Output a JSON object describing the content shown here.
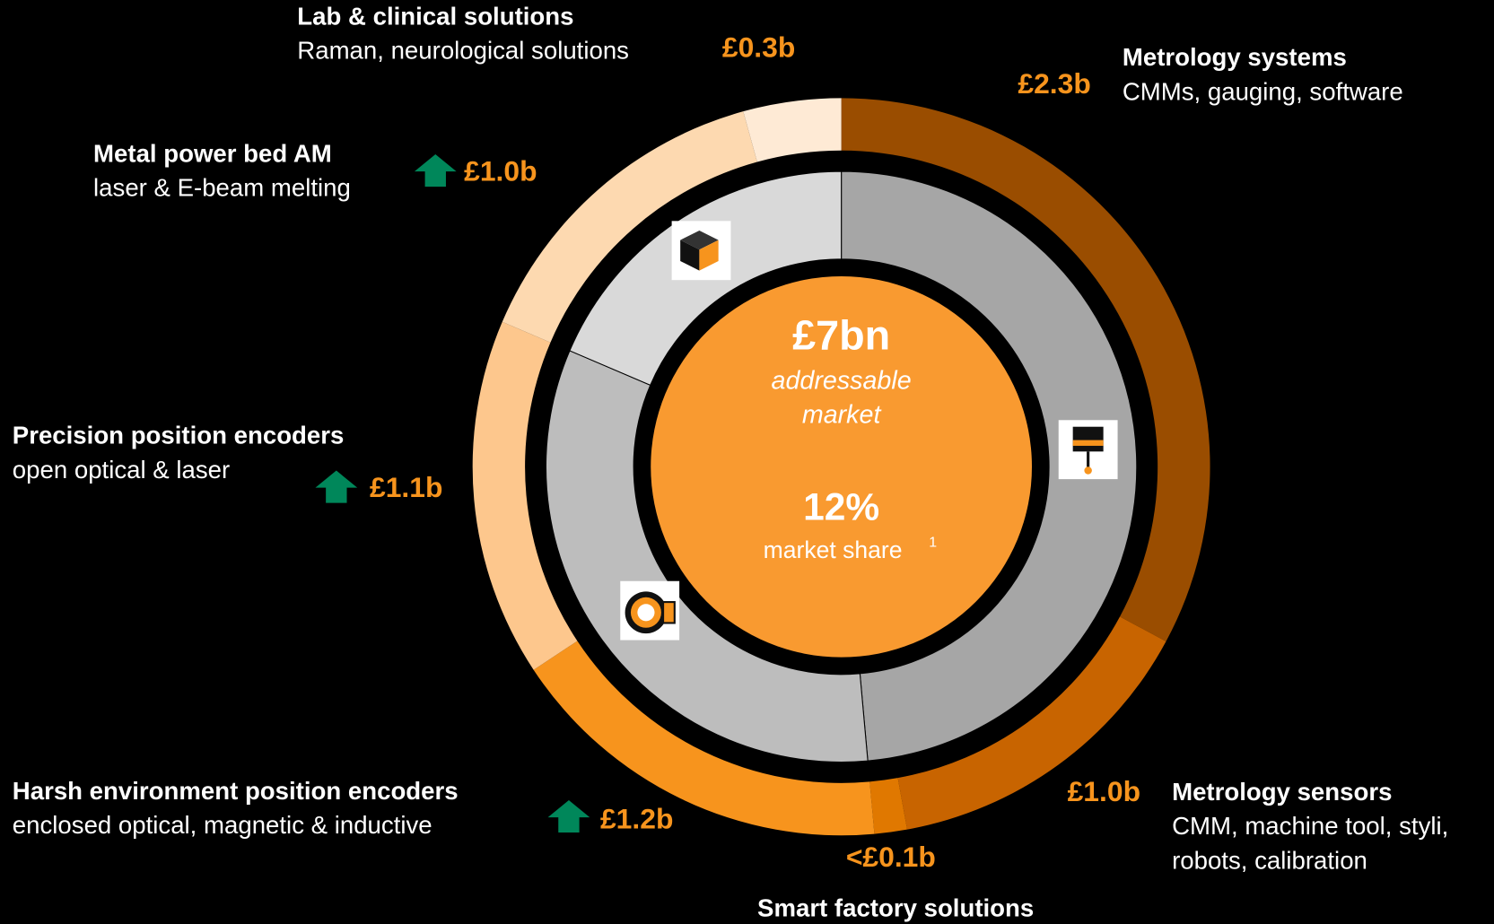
{
  "chart_data": {
    "type": "donut",
    "categories": [
      "Metrology systems",
      "Metrology sensors",
      "Smart factory solutions",
      "Harsh environment position encoders",
      "Precision position encoders",
      "Metal power bed AM",
      "Lab & clinical solutions"
    ],
    "descriptions": [
      [
        "CMMs, gauging, software"
      ],
      [
        "CMM, machine tool, styli,",
        "robots, calibration"
      ],
      [],
      [
        "enclosed optical, magnetic & inductive"
      ],
      [
        "open optical & laser"
      ],
      [
        "laser & E-beam melting"
      ],
      [
        "Raman, neurological solutions"
      ]
    ],
    "values": [
      2.3,
      1.0,
      0.1,
      1.2,
      1.1,
      1.0,
      0.3
    ],
    "value_labels": [
      "£2.3b",
      "£1.0b",
      "<£0.1b",
      "£1.2b",
      "£1.1b",
      "£1.0b",
      "£0.3b"
    ],
    "colors": [
      "#9a4d00",
      "#c86400",
      "#e07800",
      "#f7941d",
      "#fdc78d",
      "#fdd9b0",
      "#feead5"
    ],
    "growth": [
      false,
      false,
      false,
      true,
      true,
      true,
      false
    ],
    "center": {
      "total": "£7bn",
      "total_label": [
        "addressable",
        "market"
      ],
      "share": "12%",
      "share_label": "market share",
      "footnote": "1"
    }
  }
}
